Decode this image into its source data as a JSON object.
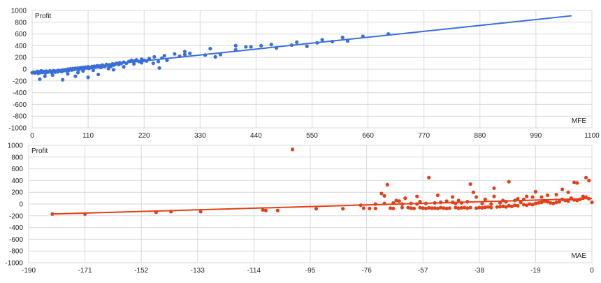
{
  "colors": {
    "mfe": "#3a6fd8",
    "mae": "#e0401a",
    "grid": "#d9d9d9",
    "frame": "#bdbdbd"
  },
  "chart_data": [
    {
      "type": "scatter",
      "title": "",
      "xlabel": "MFE",
      "ylabel": "Profit",
      "xlim": [
        0,
        1100
      ],
      "ylim": [
        -1000,
        1000
      ],
      "xticks": [
        0,
        110,
        220,
        330,
        440,
        550,
        660,
        770,
        880,
        990,
        1100
      ],
      "yticks": [
        1000,
        800,
        600,
        400,
        200,
        0,
        -200,
        -400,
        -600,
        -800,
        -1000
      ],
      "grid": true,
      "color": "#3a6fd8",
      "trendline": {
        "x": [
          0,
          1060
        ],
        "y": [
          -60,
          910
        ]
      },
      "series": [
        {
          "points": [
            [
              0,
              -60
            ],
            [
              3,
              -50
            ],
            [
              5,
              -65
            ],
            [
              8,
              -55
            ],
            [
              10,
              -40
            ],
            [
              12,
              -70
            ],
            [
              14,
              -45
            ],
            [
              16,
              -60
            ],
            [
              18,
              -30
            ],
            [
              20,
              -55
            ],
            [
              22,
              -50
            ],
            [
              24,
              -40
            ],
            [
              26,
              -65
            ],
            [
              28,
              -35
            ],
            [
              30,
              -50
            ],
            [
              32,
              -45
            ],
            [
              35,
              -30
            ],
            [
              38,
              -55
            ],
            [
              40,
              -40
            ],
            [
              42,
              -25
            ],
            [
              45,
              -50
            ],
            [
              48,
              -35
            ],
            [
              50,
              -45
            ],
            [
              52,
              -20
            ],
            [
              55,
              -30
            ],
            [
              58,
              -40
            ],
            [
              60,
              -15
            ],
            [
              62,
              -25
            ],
            [
              65,
              -10
            ],
            [
              68,
              -30
            ],
            [
              70,
              0
            ],
            [
              72,
              -20
            ],
            [
              75,
              5
            ],
            [
              78,
              -15
            ],
            [
              80,
              10
            ],
            [
              82,
              -5
            ],
            [
              85,
              15
            ],
            [
              88,
              0
            ],
            [
              90,
              20
            ],
            [
              92,
              -10
            ],
            [
              95,
              25
            ],
            [
              98,
              10
            ],
            [
              100,
              30
            ],
            [
              102,
              5
            ],
            [
              105,
              35
            ],
            [
              108,
              20
            ],
            [
              110,
              40
            ],
            [
              112,
              15
            ],
            [
              115,
              30
            ],
            [
              118,
              45
            ],
            [
              120,
              25
            ],
            [
              122,
              50
            ],
            [
              125,
              35
            ],
            [
              128,
              60
            ],
            [
              130,
              40
            ],
            [
              133,
              55
            ],
            [
              135,
              30
            ],
            [
              138,
              70
            ],
            [
              140,
              50
            ],
            [
              143,
              45
            ],
            [
              146,
              80
            ],
            [
              150,
              60
            ],
            [
              152,
              75
            ],
            [
              155,
              50
            ],
            [
              158,
              90
            ],
            [
              160,
              70
            ],
            [
              163,
              85
            ],
            [
              166,
              100
            ],
            [
              170,
              80
            ],
            [
              172,
              110
            ],
            [
              175,
              95
            ],
            [
              180,
              120
            ],
            [
              185,
              100
            ],
            [
              190,
              130
            ],
            [
              195,
              150
            ],
            [
              200,
              140
            ],
            [
              205,
              160
            ],
            [
              210,
              130
            ],
            [
              215,
              170
            ],
            [
              220,
              150
            ],
            [
              230,
              180
            ],
            [
              240,
              210
            ],
            [
              250,
              20
            ],
            [
              255,
              190
            ],
            [
              260,
              230
            ],
            [
              280,
              260
            ],
            [
              300,
              300
            ],
            [
              350,
              350
            ],
            [
              400,
              400
            ],
            [
              420,
              380
            ],
            [
              470,
              420
            ],
            [
              520,
              460
            ],
            [
              570,
              500
            ],
            [
              610,
              540
            ],
            [
              650,
              560
            ],
            [
              700,
              600
            ],
            [
              15,
              -170
            ],
            [
              25,
              -120
            ],
            [
              40,
              -100
            ],
            [
              60,
              -180
            ],
            [
              70,
              -80
            ],
            [
              85,
              -120
            ],
            [
              110,
              -140
            ],
            [
              130,
              -90
            ],
            [
              90,
              -60
            ],
            [
              100,
              -30
            ],
            [
              120,
              -20
            ],
            [
              150,
              10
            ],
            [
              160,
              -10
            ],
            [
              180,
              40
            ],
            [
              200,
              90
            ],
            [
              215,
              110
            ],
            [
              225,
              140
            ],
            [
              238,
              100
            ],
            [
              248,
              130
            ],
            [
              265,
              150
            ],
            [
              290,
              220
            ],
            [
              300,
              250
            ],
            [
              310,
              270
            ],
            [
              340,
              240
            ],
            [
              360,
              210
            ],
            [
              370,
              250
            ],
            [
              400,
              330
            ],
            [
              430,
              380
            ],
            [
              450,
              400
            ],
            [
              480,
              360
            ],
            [
              510,
              410
            ],
            [
              540,
              390
            ],
            [
              560,
              450
            ],
            [
              590,
              470
            ],
            [
              620,
              480
            ]
          ]
        }
      ]
    },
    {
      "type": "scatter",
      "title": "",
      "xlabel": "MAE",
      "ylabel": "Profit",
      "xlim": [
        -190,
        0
      ],
      "ylim": [
        -1000,
        1000
      ],
      "xticks": [
        -190,
        -171,
        -152,
        -133,
        -114,
        -95,
        -76,
        -57,
        -38,
        -19,
        0
      ],
      "yticks": [
        1000,
        800,
        600,
        400,
        200,
        0,
        -200,
        -400,
        -600,
        -800,
        -1000
      ],
      "grid": true,
      "color": "#e0401a",
      "trendline": {
        "x": [
          -182,
          0
        ],
        "y": [
          -170,
          95
        ]
      },
      "series": [
        {
          "points": [
            [
              -182,
              -170
            ],
            [
              -171,
              -170
            ],
            [
              -147,
              -140
            ],
            [
              -142,
              -130
            ],
            [
              -132,
              -130
            ],
            [
              -111,
              -100
            ],
            [
              -110,
              -110
            ],
            [
              -106,
              -110
            ],
            [
              -101,
              930
            ],
            [
              -93,
              -80
            ],
            [
              -84,
              -80
            ],
            [
              -78,
              -20
            ],
            [
              -77,
              -70
            ],
            [
              -75,
              -75
            ],
            [
              -73,
              -75
            ],
            [
              -71,
              180
            ],
            [
              -70,
              140
            ],
            [
              -69,
              330
            ],
            [
              -68,
              -70
            ],
            [
              -67,
              -75
            ],
            [
              -66,
              60
            ],
            [
              -64,
              -60
            ],
            [
              -62,
              -60
            ],
            [
              -61,
              -70
            ],
            [
              -60,
              -75
            ],
            [
              -59,
              130
            ],
            [
              -58,
              -60
            ],
            [
              -57,
              -70
            ],
            [
              -56,
              -75
            ],
            [
              -55,
              -65
            ],
            [
              -54,
              -70
            ],
            [
              -53,
              -70
            ],
            [
              -52,
              -75
            ],
            [
              -51,
              -60
            ],
            [
              -50,
              -70
            ],
            [
              -49,
              -75
            ],
            [
              -48,
              -70
            ],
            [
              -47,
              120
            ],
            [
              -46,
              -60
            ],
            [
              -45,
              -70
            ],
            [
              -44,
              -65
            ],
            [
              -43,
              -60
            ],
            [
              -42,
              -70
            ],
            [
              -41,
              -60
            ],
            [
              -40,
              200
            ],
            [
              -39,
              -70
            ],
            [
              -38,
              -60
            ],
            [
              -37,
              -65
            ],
            [
              -36,
              -55
            ],
            [
              -35,
              -50
            ],
            [
              -34,
              -60
            ],
            [
              -33,
              130
            ],
            [
              -32,
              -50
            ],
            [
              -31,
              -45
            ],
            [
              -30,
              -40
            ],
            [
              -29,
              -50
            ],
            [
              -28,
              -30
            ],
            [
              -27,
              -40
            ],
            [
              -26,
              -20
            ],
            [
              -25,
              -30
            ],
            [
              -24,
              30
            ],
            [
              -23,
              -10
            ],
            [
              -22,
              -20
            ],
            [
              -21,
              0
            ],
            [
              -20,
              -10
            ],
            [
              -19,
              10
            ],
            [
              -18,
              20
            ],
            [
              -17,
              30
            ],
            [
              -16,
              50
            ],
            [
              -15,
              40
            ],
            [
              -14,
              20
            ],
            [
              -13,
              10
            ],
            [
              -12,
              30
            ],
            [
              -11,
              40
            ],
            [
              -10,
              80
            ],
            [
              -9,
              60
            ],
            [
              -8,
              50
            ],
            [
              -7,
              90
            ],
            [
              -6,
              70
            ],
            [
              -5,
              60
            ],
            [
              -4,
              80
            ],
            [
              -3,
              100
            ],
            [
              -2,
              120
            ],
            [
              -1,
              90
            ],
            [
              0,
              30
            ],
            [
              -65,
              50
            ],
            [
              -63,
              100
            ],
            [
              -58,
              40
            ],
            [
              -55,
              450
            ],
            [
              -52,
              150
            ],
            [
              -47,
              30
            ],
            [
              -45,
              60
            ],
            [
              -41,
              340
            ],
            [
              -39,
              120
            ],
            [
              -36,
              80
            ],
            [
              -33,
              270
            ],
            [
              -30,
              60
            ],
            [
              -28,
              380
            ],
            [
              -25,
              90
            ],
            [
              -22,
              130
            ],
            [
              -19,
              210
            ],
            [
              -17,
              120
            ],
            [
              -15,
              150
            ],
            [
              -12,
              160
            ],
            [
              -10,
              250
            ],
            [
              -8,
              200
            ],
            [
              -7,
              100
            ],
            [
              -6,
              370
            ],
            [
              -5,
              360
            ],
            [
              -3,
              130
            ],
            [
              -2,
              450
            ],
            [
              -1,
              400
            ],
            [
              -20,
              120
            ],
            [
              -23,
              80
            ],
            [
              -26,
              60
            ],
            [
              -29,
              40
            ],
            [
              -31,
              20
            ],
            [
              -34,
              0
            ],
            [
              -37,
              10
            ],
            [
              -42,
              40
            ],
            [
              -44,
              20
            ],
            [
              -46,
              10
            ],
            [
              -49,
              50
            ],
            [
              -51,
              30
            ],
            [
              -53,
              20
            ],
            [
              -56,
              10
            ],
            [
              -59,
              0
            ],
            [
              -61,
              10
            ],
            [
              -64,
              0
            ],
            [
              -67,
              20
            ],
            [
              -70,
              10
            ],
            [
              -73,
              0
            ]
          ]
        }
      ]
    }
  ]
}
